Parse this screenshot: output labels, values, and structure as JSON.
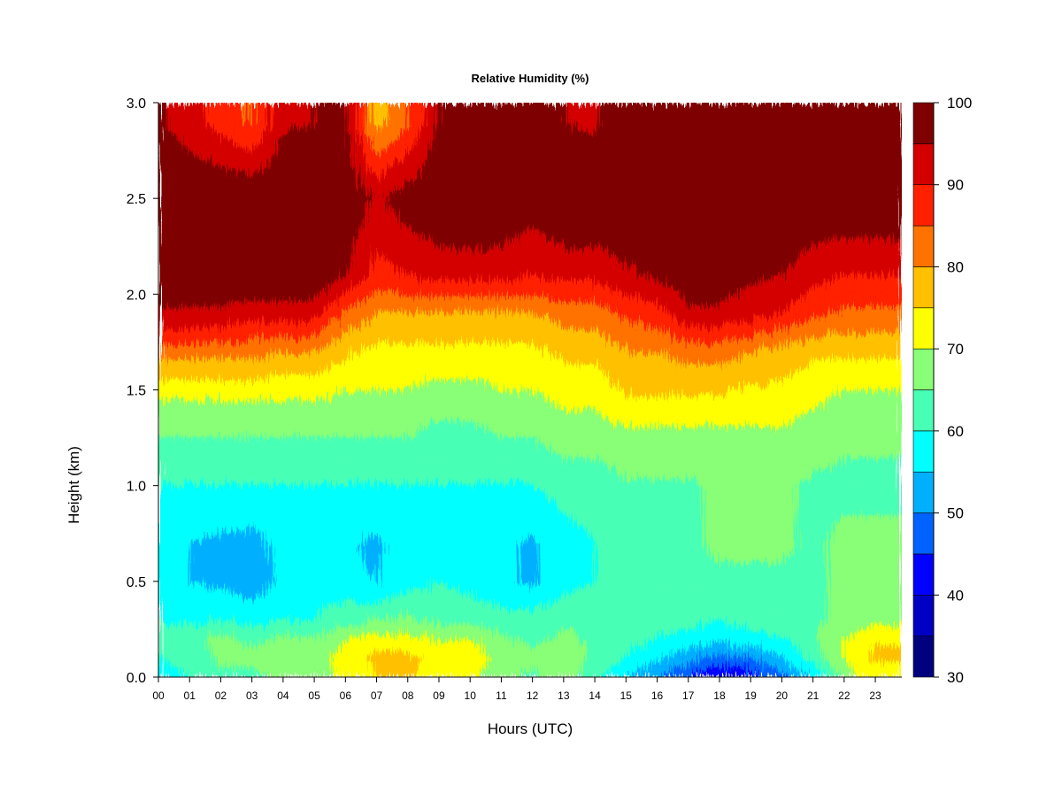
{
  "chart_data": {
    "type": "heatmap",
    "title": "Relative Humidity (%)",
    "xlabel": "Hours (UTC)",
    "ylabel": "Height (km)",
    "xlim": [
      0,
      23.85
    ],
    "ylim": [
      0.0,
      3.0
    ],
    "x_ticks": [
      "00",
      "01",
      "02",
      "03",
      "04",
      "05",
      "06",
      "07",
      "08",
      "09",
      "10",
      "11",
      "12",
      "13",
      "14",
      "15",
      "16",
      "17",
      "18",
      "19",
      "20",
      "21",
      "22",
      "23"
    ],
    "y_ticks": [
      "0.0",
      "0.5",
      "1.0",
      "1.5",
      "2.0",
      "2.5",
      "3.0"
    ],
    "colorbar": {
      "levels": [
        30,
        35,
        40,
        45,
        50,
        55,
        60,
        65,
        70,
        75,
        80,
        85,
        90,
        95,
        100
      ],
      "labels": [
        "30",
        "40",
        "50",
        "60",
        "70",
        "80",
        "90",
        "100"
      ],
      "colors": [
        "#00007F",
        "#0000C4",
        "#0000FF",
        "#0062FF",
        "#00B0FF",
        "#00FFFF",
        "#48FFB6",
        "#88FF76",
        "#FFFF00",
        "#FFC000",
        "#FF7200",
        "#FF2000",
        "#D40000",
        "#7F0000"
      ]
    },
    "hours": [
      0,
      1,
      2,
      3,
      4,
      5,
      6,
      7,
      8,
      9,
      10,
      11,
      12,
      13,
      14,
      15,
      16,
      17,
      18,
      19,
      20,
      21,
      22,
      23
    ],
    "heights_km": [
      0.0,
      0.1,
      0.2,
      0.3,
      0.5,
      0.7,
      1.0,
      1.3,
      1.5,
      1.7,
      1.9,
      2.1,
      2.5,
      2.9
    ],
    "rh_percent": [
      [
        57,
        60,
        64,
        64,
        66,
        66,
        72,
        75,
        76,
        72,
        72,
        66,
        64,
        68,
        62,
        55,
        50,
        45,
        40,
        42,
        48,
        55,
        68,
        72
      ],
      [
        60,
        62,
        66,
        66,
        68,
        68,
        72,
        76,
        76,
        74,
        74,
        68,
        66,
        68,
        64,
        60,
        56,
        52,
        48,
        50,
        55,
        62,
        70,
        76
      ],
      [
        62,
        64,
        66,
        64,
        66,
        66,
        70,
        72,
        72,
        70,
        70,
        66,
        64,
        66,
        64,
        62,
        60,
        58,
        56,
        58,
        60,
        64,
        70,
        74
      ],
      [
        60,
        58,
        60,
        58,
        60,
        60,
        64,
        64,
        66,
        64,
        64,
        62,
        62,
        64,
        64,
        62,
        62,
        62,
        60,
        62,
        62,
        64,
        66,
        68
      ],
      [
        55,
        55,
        54,
        52,
        56,
        58,
        56,
        55,
        58,
        60,
        58,
        56,
        54,
        58,
        60,
        62,
        62,
        64,
        64,
        64,
        64,
        64,
        66,
        66
      ],
      [
        56,
        55,
        54,
        53,
        57,
        58,
        56,
        54,
        58,
        60,
        58,
        56,
        54,
        58,
        60,
        62,
        63,
        64,
        66,
        66,
        66,
        64,
        66,
        66
      ],
      [
        60,
        60,
        60,
        60,
        60,
        60,
        60,
        60,
        60,
        60,
        60,
        60,
        60,
        62,
        62,
        64,
        64,
        64,
        66,
        66,
        66,
        64,
        64,
        64
      ],
      [
        66,
        66,
        66,
        66,
        66,
        66,
        66,
        66,
        66,
        64,
        64,
        66,
        66,
        68,
        68,
        70,
        70,
        70,
        70,
        70,
        70,
        68,
        66,
        66
      ],
      [
        72,
        72,
        72,
        72,
        72,
        72,
        70,
        70,
        70,
        68,
        68,
        70,
        70,
        72,
        72,
        76,
        76,
        76,
        76,
        74,
        74,
        72,
        70,
        70
      ],
      [
        82,
        82,
        82,
        82,
        80,
        80,
        76,
        74,
        74,
        74,
        74,
        74,
        74,
        76,
        76,
        80,
        80,
        82,
        82,
        80,
        78,
        76,
        76,
        76
      ],
      [
        94,
        94,
        94,
        92,
        92,
        92,
        84,
        80,
        80,
        80,
        80,
        80,
        80,
        82,
        82,
        86,
        88,
        94,
        94,
        92,
        90,
        86,
        84,
        84
      ],
      [
        100,
        100,
        100,
        100,
        100,
        100,
        95,
        88,
        90,
        92,
        92,
        92,
        90,
        92,
        92,
        94,
        96,
        98,
        98,
        96,
        95,
        92,
        90,
        90
      ],
      [
        100,
        100,
        100,
        100,
        100,
        100,
        100,
        94,
        98,
        100,
        100,
        100,
        98,
        100,
        100,
        100,
        100,
        100,
        100,
        100,
        100,
        100,
        100,
        100
      ],
      [
        96,
        92,
        88,
        84,
        94,
        95,
        96,
        78,
        84,
        96,
        96,
        96,
        96,
        95,
        94,
        100,
        100,
        100,
        100,
        100,
        100,
        100,
        100,
        100
      ]
    ]
  }
}
